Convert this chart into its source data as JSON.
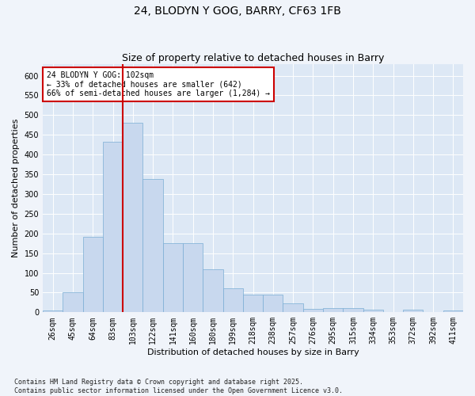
{
  "title": "24, BLODYN Y GOG, BARRY, CF63 1FB",
  "subtitle": "Size of property relative to detached houses in Barry",
  "xlabel": "Distribution of detached houses by size in Barry",
  "ylabel": "Number of detached properties",
  "bar_values": [
    4,
    51,
    191,
    433,
    481,
    338,
    176,
    176,
    110,
    60,
    44,
    44,
    22,
    8,
    11,
    11,
    6,
    1,
    6,
    1,
    4
  ],
  "bar_labels": [
    "26sqm",
    "45sqm",
    "64sqm",
    "83sqm",
    "103sqm",
    "122sqm",
    "141sqm",
    "160sqm",
    "180sqm",
    "199sqm",
    "218sqm",
    "238sqm",
    "257sqm",
    "276sqm",
    "295sqm",
    "315sqm",
    "334sqm",
    "353sqm",
    "372sqm",
    "392sqm",
    "411sqm"
  ],
  "bar_color": "#c8d8ee",
  "bar_edge_color": "#7aadd4",
  "vline_index": 4,
  "vline_color": "#cc0000",
  "annotation_text": "24 BLODYN Y GOG: 102sqm\n← 33% of detached houses are smaller (642)\n66% of semi-detached houses are larger (1,284) →",
  "annotation_box_facecolor": "#ffffff",
  "annotation_box_edgecolor": "#cc0000",
  "ylim": [
    0,
    630
  ],
  "yticks": [
    0,
    50,
    100,
    150,
    200,
    250,
    300,
    350,
    400,
    450,
    500,
    550,
    600
  ],
  "footnote": "Contains HM Land Registry data © Crown copyright and database right 2025.\nContains public sector information licensed under the Open Government Licence v3.0.",
  "fig_facecolor": "#f0f4fa",
  "axes_facecolor": "#dde8f5",
  "grid_color": "#ffffff",
  "title_fontsize": 10,
  "subtitle_fontsize": 9,
  "axis_label_fontsize": 8,
  "tick_fontsize": 7,
  "annotation_fontsize": 7,
  "footnote_fontsize": 6
}
